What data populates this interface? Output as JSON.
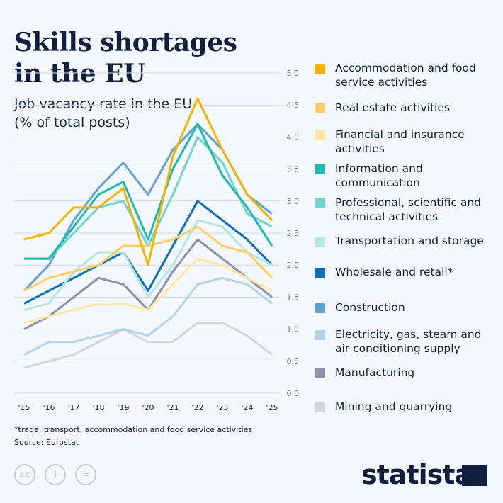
{
  "header": {
    "title": "Skills shortages in the EU",
    "subtitle": "Job vacancy rate in the EU (% of total posts)"
  },
  "footer": {
    "note": "*trade, transport, accommodation and food service activities",
    "source": "Source: Eurostat",
    "logo": "statista",
    "license_icons": [
      "cc-icon",
      "attribution-icon",
      "no-derivatives-icon"
    ]
  },
  "chart_data": {
    "type": "line",
    "title": "Job vacancy rate in the EU (% of total posts)",
    "categories": [
      "'15",
      "'16",
      "'17",
      "'18",
      "'19",
      "'20",
      "'21",
      "'22",
      "'23",
      "'24",
      "'25"
    ],
    "ylim": [
      0,
      5
    ],
    "yticks": [
      "0.0",
      "0.5",
      "1.0",
      "1.5",
      "2.0",
      "2.5",
      "3.0",
      "3.5",
      "4.0",
      "4.5",
      "5.0"
    ],
    "grid": true,
    "legend_position": "right",
    "series": [
      {
        "name": "Accommodation and food service activities",
        "color": "#f5b301",
        "values": [
          2.4,
          2.5,
          2.9,
          2.9,
          3.2,
          2.0,
          3.7,
          4.6,
          3.8,
          3.1,
          2.7
        ]
      },
      {
        "name": "Real estate activities",
        "color": "#fcd066",
        "values": [
          1.6,
          1.8,
          1.9,
          2.0,
          2.3,
          2.3,
          2.4,
          2.6,
          2.3,
          2.2,
          1.8
        ]
      },
      {
        "name": "Financial and insurance activities",
        "color": "#fde8a6",
        "values": [
          1.1,
          1.2,
          1.3,
          1.4,
          1.4,
          1.3,
          1.7,
          2.1,
          2.0,
          1.8,
          1.6
        ]
      },
      {
        "name": "Information and communication",
        "color": "#1cbab1",
        "values": [
          2.1,
          2.1,
          2.6,
          3.1,
          3.3,
          2.4,
          3.5,
          4.2,
          3.4,
          2.9,
          2.3
        ]
      },
      {
        "name": "Professional, scientific and technical activities",
        "color": "#6fd4cf",
        "values": [
          2.1,
          2.1,
          2.5,
          2.9,
          3.0,
          2.3,
          3.1,
          4.0,
          3.6,
          2.8,
          2.6
        ]
      },
      {
        "name": "Transportation and storage",
        "color": "#b4e8e5",
        "values": [
          1.3,
          1.4,
          1.9,
          2.2,
          2.2,
          1.5,
          2.0,
          2.7,
          2.6,
          2.2,
          2.0
        ]
      },
      {
        "name": "Wholesale and retail*",
        "color": "#0a6fbd",
        "values": [
          1.4,
          1.6,
          1.8,
          2.0,
          2.2,
          1.6,
          2.3,
          3.0,
          2.7,
          2.4,
          2.0
        ]
      },
      {
        "name": "Construction",
        "color": "#5fa3d4",
        "values": [
          1.6,
          2.0,
          2.7,
          3.2,
          3.6,
          3.1,
          3.8,
          4.2,
          3.8,
          3.1,
          2.8
        ]
      },
      {
        "name": "Electricity, gas, steam and air conditioning supply",
        "color": "#b2d5ec",
        "values": [
          0.6,
          0.8,
          0.8,
          0.9,
          1.0,
          0.9,
          1.2,
          1.7,
          1.8,
          1.7,
          1.4
        ]
      },
      {
        "name": "Manufacturing",
        "color": "#8b93a8",
        "values": [
          1.0,
          1.2,
          1.5,
          1.8,
          1.7,
          1.3,
          1.9,
          2.4,
          2.1,
          1.8,
          1.5
        ]
      },
      {
        "name": "Mining and quarrying",
        "color": "#d0d5df",
        "values": [
          0.4,
          0.5,
          0.6,
          0.8,
          1.0,
          0.8,
          0.8,
          1.1,
          1.1,
          0.9,
          0.6
        ]
      }
    ]
  }
}
